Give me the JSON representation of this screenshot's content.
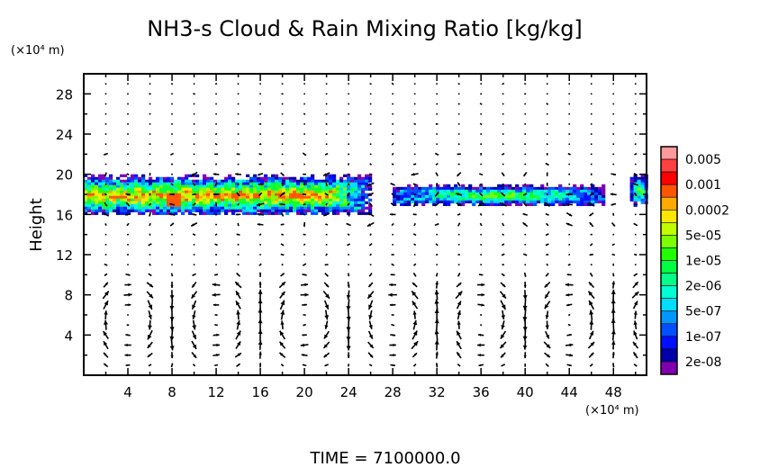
{
  "chart_data": {
    "type": "heatmap",
    "title": "NH3-s Cloud & Rain Mixing Ratio [kg/kg]",
    "ylabel": "Height",
    "y_unit": "(×10⁴ m)",
    "x_unit": "(×10⁴ m)",
    "xlim": [
      0,
      51
    ],
    "ylim": [
      0,
      30
    ],
    "x_ticks": [
      "4",
      "8",
      "12",
      "16",
      "20",
      "24",
      "28",
      "32",
      "36",
      "40",
      "44",
      "48"
    ],
    "y_ticks": [
      "4",
      "8",
      "12",
      "16",
      "20",
      "24",
      "28"
    ],
    "footer": "TIME = 7100000.0",
    "colorbar": {
      "labels": [
        "0.005",
        "0.001",
        "0.0002",
        "5e-05",
        "1e-05",
        "2e-06",
        "5e-07",
        "1e-07",
        "2e-08"
      ],
      "colors": [
        "#ff9a9a",
        "#ff4040",
        "#ff0000",
        "#ff5500",
        "#ffaa00",
        "#ffe600",
        "#c0ff00",
        "#7cff00",
        "#22ff00",
        "#00ff40",
        "#00ff88",
        "#00ffd4",
        "#00deff",
        "#0098ff",
        "#0050ff",
        "#0010ff",
        "#0000a8",
        "#8000b0"
      ]
    },
    "cloud_layers": [
      {
        "x_range": [
          0,
          26
        ],
        "z_range": [
          16,
          20
        ],
        "max_level": "0.001"
      },
      {
        "x_range": [
          28,
          47
        ],
        "z_range": [
          17,
          19
        ],
        "max_level": "5e-05"
      },
      {
        "x_range": [
          49.5,
          51
        ],
        "z_range": [
          17,
          20
        ],
        "max_level": "5e-05"
      }
    ],
    "vector_field": {
      "x_spacing": 2,
      "z_spacing": 1,
      "cell_centers_x": [
        4,
        12,
        22,
        38
      ],
      "cell_top": 10
    }
  }
}
